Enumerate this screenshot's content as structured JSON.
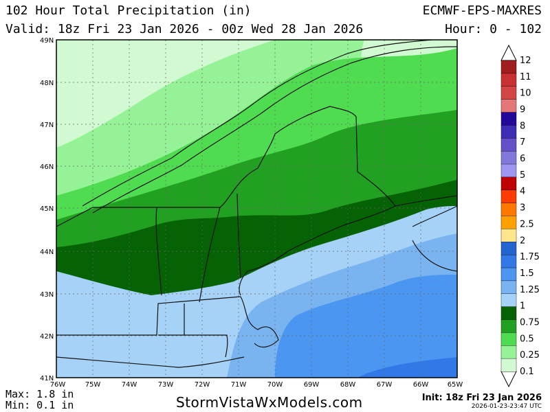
{
  "header": {
    "title": "102 Hour Total Precipitation (in)",
    "valid": "Valid: 18z Fri 23 Jan 2026 - 00z Wed 28 Jan 2026",
    "model": "ECMWF-EPS-MAXRES",
    "hour_range": "Hour: 0 - 102"
  },
  "axes": {
    "lat_labels": [
      "49N",
      "48N",
      "47N",
      "46N",
      "45N",
      "44N",
      "43N",
      "42N",
      "41N"
    ],
    "lon_labels": [
      "76W",
      "75W",
      "74W",
      "73W",
      "72W",
      "71W",
      "70W",
      "69W",
      "68W",
      "67W",
      "66W",
      "65W"
    ],
    "lat_range": [
      41,
      49
    ],
    "lon_range": [
      -76,
      -65
    ]
  },
  "legend": {
    "levels": [
      "12",
      "11",
      "10",
      "9",
      "8",
      "7",
      "6",
      "5",
      "4",
      "3",
      "2.5",
      "2",
      "1.75",
      "1.5",
      "1.25",
      "1",
      "0.75",
      "0.5",
      "0.25",
      "0.1"
    ],
    "colors": [
      "#a01e1e",
      "#c83232",
      "#d24646",
      "#e47878",
      "#23089a",
      "#3c2db4",
      "#6450c8",
      "#8278dc",
      "#9e96f0",
      "#be0000",
      "#ff3c00",
      "#ff7800",
      "#ffa000",
      "#ffe68c",
      "#2264d0",
      "#3278e6",
      "#4a96f0",
      "#7ab4f0",
      "#a6d2f7",
      "#056205",
      "#22a022",
      "#50dc50",
      "#96f296",
      "#d2fad2"
    ]
  },
  "footer": {
    "max": "Max: 1.8 in",
    "min": "Min: 0.1 in",
    "brand": "StormVistaWxModels.com",
    "init": "Init: 18z Fri 23 Jan 2026",
    "timestamp": "2026-01-23-23:47 UTC"
  },
  "map_fill_colors": {
    "p01": "#d2fad2",
    "p025": "#96f296",
    "p05": "#50dc50",
    "p075": "#22a022",
    "p1": "#056205",
    "p125": "#a6d2f7",
    "p15": "#7ab4f0",
    "p175": "#4a96f0",
    "p2": "#3278e6"
  }
}
